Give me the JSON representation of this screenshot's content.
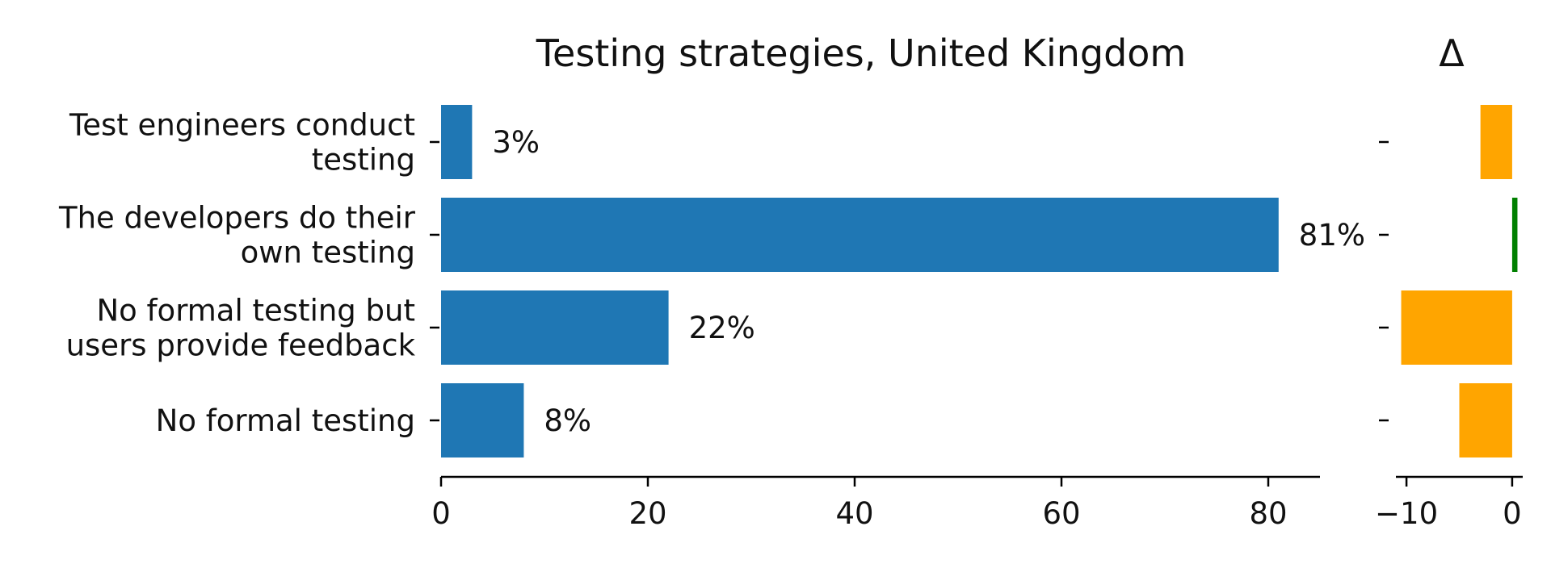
{
  "chart_data": [
    {
      "type": "bar",
      "orientation": "horizontal",
      "title": "Testing strategies, United Kingdom",
      "categories": [
        [
          "Test engineers conduct",
          "testing"
        ],
        [
          "The developers do their",
          "own testing"
        ],
        [
          "No formal testing but",
          "users provide feedback"
        ],
        [
          "No formal testing"
        ]
      ],
      "values": [
        3,
        81,
        22,
        8
      ],
      "value_labels": [
        "3%",
        "81%",
        "22%",
        "8%"
      ],
      "xlim": [
        0,
        85
      ],
      "xticks": [
        0,
        20,
        40,
        60,
        80
      ],
      "bar_color": "#1f77b4",
      "grid": false
    },
    {
      "type": "bar",
      "orientation": "horizontal",
      "title": "Δ",
      "values": [
        -3,
        0.5,
        -10.5,
        -5
      ],
      "xlim": [
        -11,
        1
      ],
      "xticks": [
        -10,
        0
      ],
      "xtick_labels": [
        "−10",
        "0"
      ],
      "negative_color": "#ffa500",
      "positive_color": "#008000",
      "grid": false
    }
  ]
}
